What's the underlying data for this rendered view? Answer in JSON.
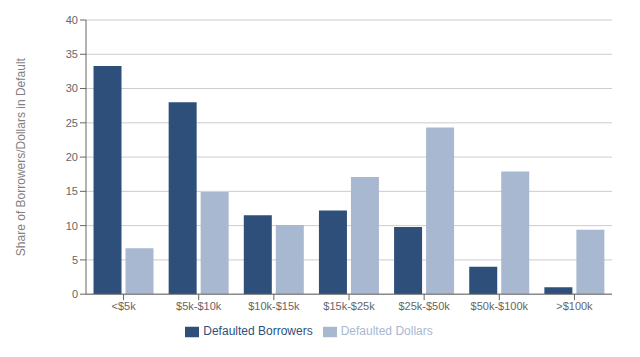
{
  "chart_data": {
    "type": "bar",
    "categories": [
      "<$5k",
      "$5k-$10k",
      "$10k-$15k",
      "$15k-$25k",
      "$25k-$50k",
      "$50k-$100k",
      ">$100k"
    ],
    "series": [
      {
        "name": "Defaulted Borrowers",
        "color": "#2E4F7A",
        "values": [
          33.3,
          28.0,
          11.5,
          12.2,
          9.8,
          4.0,
          1.0
        ]
      },
      {
        "name": "Defaulted Dollars",
        "color": "#A8B8D0",
        "values": [
          6.7,
          14.9,
          10.1,
          17.1,
          24.3,
          17.9,
          9.4
        ]
      }
    ],
    "ylabel": "Share of Borrowers/Dollars in Default",
    "ylim": [
      0,
      40
    ],
    "yticks": [
      0,
      5,
      10,
      15,
      20,
      25,
      30,
      35,
      40
    ],
    "grid": true,
    "legend": "bottom"
  }
}
